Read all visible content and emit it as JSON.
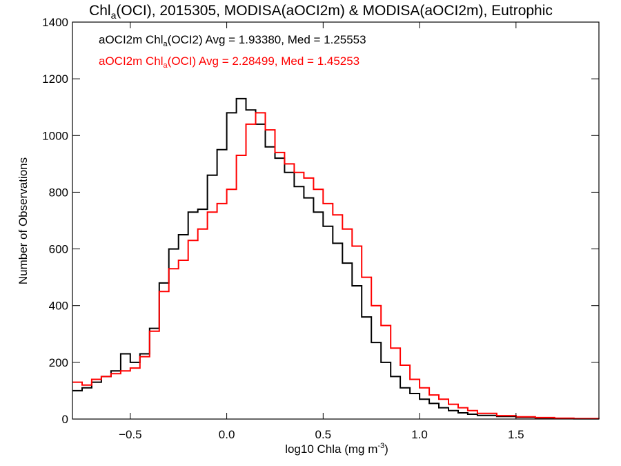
{
  "chart_data": {
    "type": "line",
    "title_parts": {
      "pre": "Chl",
      "sub": "a",
      "post": "(OCI), 2015305, MODISA(aOCI2m) & MODISA(aOCI2m), Eutrophic"
    },
    "xlabel_parts": {
      "pre": "log10 Chla (mg m",
      "sup": "-3",
      "post": ")"
    },
    "ylabel": "Number of Observations",
    "xlim": [
      -0.8,
      1.93
    ],
    "ylim": [
      0,
      1400
    ],
    "xticks": [
      -0.5,
      0.0,
      0.5,
      1.0,
      1.5
    ],
    "xtick_labels": [
      "−0.5",
      "0.0",
      "0.5",
      "1.0",
      "1.5"
    ],
    "yticks": [
      0,
      200,
      400,
      600,
      800,
      1000,
      1200,
      1400
    ],
    "ytick_labels": [
      "0",
      "200",
      "400",
      "600",
      "800",
      "1000",
      "1200",
      "1400"
    ],
    "legend": [
      {
        "pre": "aOCI2m Chl",
        "sub": "a",
        "post": "(OCI2) Avg = 1.93380, Med = 1.25553",
        "color": "#000000"
      },
      {
        "pre": "aOCI2m Chl",
        "sub": "a",
        "post": "(OCI) Avg = 2.28499, Med = 1.45253",
        "color": "#ff0000"
      }
    ],
    "legend_position": "top-left",
    "series": [
      {
        "color": "#000000",
        "x": [
          -0.8,
          -0.75,
          -0.7,
          -0.65,
          -0.6,
          -0.55,
          -0.5,
          -0.45,
          -0.4,
          -0.35,
          -0.3,
          -0.25,
          -0.2,
          -0.15,
          -0.1,
          -0.05,
          0.0,
          0.05,
          0.1,
          0.15,
          0.2,
          0.25,
          0.3,
          0.35,
          0.4,
          0.45,
          0.5,
          0.55,
          0.6,
          0.65,
          0.7,
          0.75,
          0.8,
          0.85,
          0.9,
          0.95,
          1.0,
          1.05,
          1.1,
          1.15,
          1.2,
          1.25,
          1.3,
          1.4,
          1.5,
          1.6,
          1.7,
          1.8,
          1.93
        ],
        "y": [
          100,
          110,
          130,
          150,
          170,
          230,
          200,
          230,
          320,
          480,
          600,
          650,
          730,
          740,
          860,
          950,
          1080,
          1130,
          1090,
          1040,
          960,
          920,
          870,
          820,
          780,
          730,
          680,
          620,
          550,
          470,
          360,
          270,
          200,
          150,
          110,
          90,
          70,
          55,
          40,
          30,
          22,
          17,
          13,
          9,
          6,
          4,
          2,
          1,
          1
        ]
      },
      {
        "color": "#ff0000",
        "x": [
          -0.8,
          -0.75,
          -0.7,
          -0.65,
          -0.6,
          -0.55,
          -0.5,
          -0.45,
          -0.4,
          -0.35,
          -0.3,
          -0.25,
          -0.2,
          -0.15,
          -0.1,
          -0.05,
          0.0,
          0.05,
          0.1,
          0.15,
          0.2,
          0.25,
          0.3,
          0.35,
          0.4,
          0.45,
          0.5,
          0.55,
          0.6,
          0.65,
          0.7,
          0.75,
          0.8,
          0.85,
          0.9,
          0.95,
          1.0,
          1.05,
          1.1,
          1.15,
          1.2,
          1.25,
          1.3,
          1.4,
          1.5,
          1.6,
          1.7,
          1.8,
          1.93
        ],
        "y": [
          130,
          120,
          140,
          150,
          160,
          170,
          180,
          220,
          310,
          450,
          530,
          560,
          630,
          670,
          730,
          760,
          810,
          930,
          1040,
          1080,
          1020,
          940,
          900,
          870,
          850,
          810,
          760,
          720,
          670,
          610,
          500,
          400,
          330,
          250,
          190,
          140,
          110,
          85,
          70,
          52,
          40,
          30,
          20,
          12,
          8,
          5,
          3,
          2,
          1
        ]
      }
    ]
  }
}
